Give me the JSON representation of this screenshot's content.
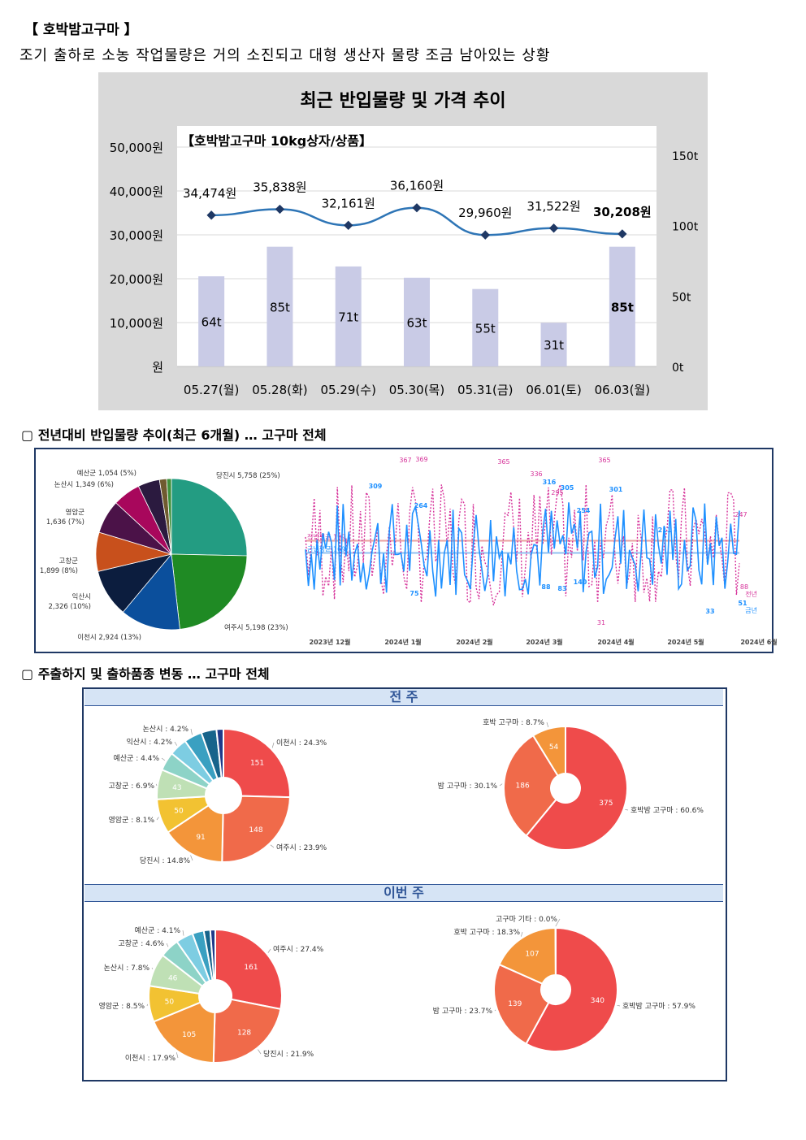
{
  "header": {
    "title": "【 호박밤고구마 】",
    "summary": "조기 출하로 소농 작업물량은 거의 소진되고 대형 생산자 물량 조금 남아있는 상황"
  },
  "chart1": {
    "title": "최근 반입물량 및 가격 추이",
    "inner_title": "【호박밤고구마 10kg상자/상품】",
    "left_ticks": [
      "50,000원",
      "40,000원",
      "30,000원",
      "20,000원",
      "10,000원",
      "원"
    ],
    "right_ticks": [
      "150t",
      "100t",
      "50t",
      "0t"
    ],
    "chart_data": {
      "type": "bar+line",
      "categories": [
        "05.27(월)",
        "05.28(화)",
        "05.29(수)",
        "05.30(목)",
        "05.31(금)",
        "06.01(토)",
        "06.03(월)"
      ],
      "volume_tons": [
        64,
        85,
        71,
        63,
        55,
        31,
        85
      ],
      "volume_labels": [
        "64t",
        "85t",
        "71t",
        "63t",
        "55t",
        "31t",
        "85t"
      ],
      "price_won": [
        34474,
        35838,
        32161,
        36160,
        29960,
        31522,
        30208
      ],
      "price_labels": [
        "34,474원",
        "35,838원",
        "32,161원",
        "36,160원",
        "29,960원",
        "31,522원",
        "30,208원"
      ],
      "price_ylim": [
        0,
        50000
      ],
      "volume_ylim": [
        0,
        150
      ],
      "bar_color": "#c9cbe6",
      "line_color": "#2e75b6"
    }
  },
  "section2": {
    "heading": "▢  전년대비 반입물량 추이(최근 6개월) … 고구마 전체",
    "pie": {
      "type": "pie",
      "slices": [
        {
          "label": "당진시 5,758 (25%)",
          "value": 5758,
          "color": "#239c82"
        },
        {
          "label": "여주시 5,198 (23%)",
          "value": 5198,
          "color": "#1f8a24"
        },
        {
          "label": "이천시 2,924 (13%)",
          "value": 2924,
          "color": "#0b4f9c"
        },
        {
          "label": "익산시\n2,326 (10%)",
          "value": 2326,
          "color": "#0c1d3e"
        },
        {
          "label": "고창군\n1,899 (8%)",
          "value": 1899,
          "color": "#c8501c"
        },
        {
          "label": "영암군\n1,636 (7%)",
          "value": 1636,
          "color": "#4b1248"
        },
        {
          "label": "논산시 1,349 (6%)",
          "value": 1349,
          "color": "#a8075c"
        },
        {
          "label": "예산군 1,054 (5%)",
          "value": 1054,
          "color": "#2b1a3f"
        },
        {
          "label": "",
          "value": 350,
          "color": "#6f5a2f"
        },
        {
          "label": "",
          "value": 230,
          "color": "#3f8f3a"
        }
      ]
    },
    "line": {
      "type": "line",
      "x_ticks": [
        "2023년 12월",
        "2024년 1월",
        "2024년 2월",
        "2024년 3월",
        "2024년 4월",
        "2024년 5월",
        "2024년 6월"
      ],
      "series_labels": [
        "전년",
        "금년"
      ],
      "avg_labels": [
        "전년평균 199",
        "금년평균 169"
      ],
      "avg_values": [
        199,
        169
      ],
      "this_year_color": "#1e90ff",
      "last_year_color": "#d6339a",
      "this_year_peaks": [
        "309",
        "264",
        "316",
        "305",
        "254",
        "301",
        "211",
        "75",
        "88",
        "83",
        "140",
        "51",
        "33"
      ],
      "last_year_peaks": [
        "367",
        "369",
        "365",
        "336",
        "295",
        "365",
        "247",
        "31",
        "88"
      ],
      "ylim": [
        0,
        400
      ]
    }
  },
  "section3": {
    "heading": "▢  주출하지 및 출하품종 변동 … 고구마 전체",
    "prev_week_label": "전 주",
    "this_week_label": "이번 주",
    "prev_region": {
      "slices": [
        {
          "label": "이천시 : 24.3%",
          "value": 151,
          "text": "151",
          "color": "#ef4b4b"
        },
        {
          "label": "여주시 : 23.9%",
          "value": 148,
          "text": "148",
          "color": "#f06a4a"
        },
        {
          "label": "당진시 : 14.8%",
          "value": 91,
          "text": "91",
          "color": "#f3953a"
        },
        {
          "label": "영암군 : 8.1%",
          "value": 50,
          "text": "50",
          "color": "#f2c232"
        },
        {
          "label": "고창군 : 6.9%",
          "value": 43,
          "text": "43",
          "color": "#bfe0b5"
        },
        {
          "label": "예산군 : 4.4%",
          "value": 27,
          "text": "",
          "color": "#8dd3c7"
        },
        {
          "label": "익산시 : 4.2%",
          "value": 26,
          "text": "",
          "color": "#7dcde2"
        },
        {
          "label": "논산시 : 4.2%",
          "value": 26,
          "text": "",
          "color": "#3aa0c1"
        },
        {
          "label": "",
          "value": 22,
          "text": "",
          "color": "#17648b"
        },
        {
          "label": "",
          "value": 10,
          "text": "",
          "color": "#1f3a8a"
        }
      ]
    },
    "prev_variety": {
      "slices": [
        {
          "label": "호박밤 고구마 : 60.6%",
          "value": 375,
          "text": "375",
          "color": "#ef4b4b"
        },
        {
          "label": "밤 고구마 : 30.1%",
          "value": 186,
          "text": "186",
          "color": "#f06a4a"
        },
        {
          "label": "호박 고구마 : 8.7%",
          "value": 54,
          "text": "54",
          "color": "#f3953a"
        }
      ]
    },
    "this_region": {
      "slices": [
        {
          "label": "여주시 : 27.4%",
          "value": 161,
          "text": "161",
          "color": "#ef4b4b"
        },
        {
          "label": "당진시 : 21.9%",
          "value": 128,
          "text": "128",
          "color": "#f06a4a"
        },
        {
          "label": "이천시 : 17.9%",
          "value": 105,
          "text": "105",
          "color": "#f3953a"
        },
        {
          "label": "영암군 : 8.5%",
          "value": 50,
          "text": "50",
          "color": "#f2c232"
        },
        {
          "label": "논산시 : 7.8%",
          "value": 46,
          "text": "46",
          "color": "#bfe0b5"
        },
        {
          "label": "고창군 : 4.6%",
          "value": 27,
          "text": "",
          "color": "#8dd3c7"
        },
        {
          "label": "예산군 : 4.1%",
          "value": 24,
          "text": "",
          "color": "#7dcde2"
        },
        {
          "label": "",
          "value": 16,
          "text": "",
          "color": "#3aa0c1"
        },
        {
          "label": "",
          "value": 9,
          "text": "",
          "color": "#17648b"
        },
        {
          "label": "",
          "value": 7,
          "text": "",
          "color": "#1f3a8a"
        }
      ]
    },
    "this_variety": {
      "slices": [
        {
          "label": "호박밤 고구마 : 57.9%",
          "value": 340,
          "text": "340",
          "color": "#ef4b4b"
        },
        {
          "label": "밤 고구마 : 23.7%",
          "value": 139,
          "text": "139",
          "color": "#f06a4a"
        },
        {
          "label": "호박 고구마 : 18.3%",
          "value": 107,
          "text": "107",
          "color": "#f3953a"
        },
        {
          "label": "고구마 기타 : 0.0%",
          "value": 0.5,
          "text": "",
          "color": "#b8b8b8"
        }
      ]
    }
  }
}
